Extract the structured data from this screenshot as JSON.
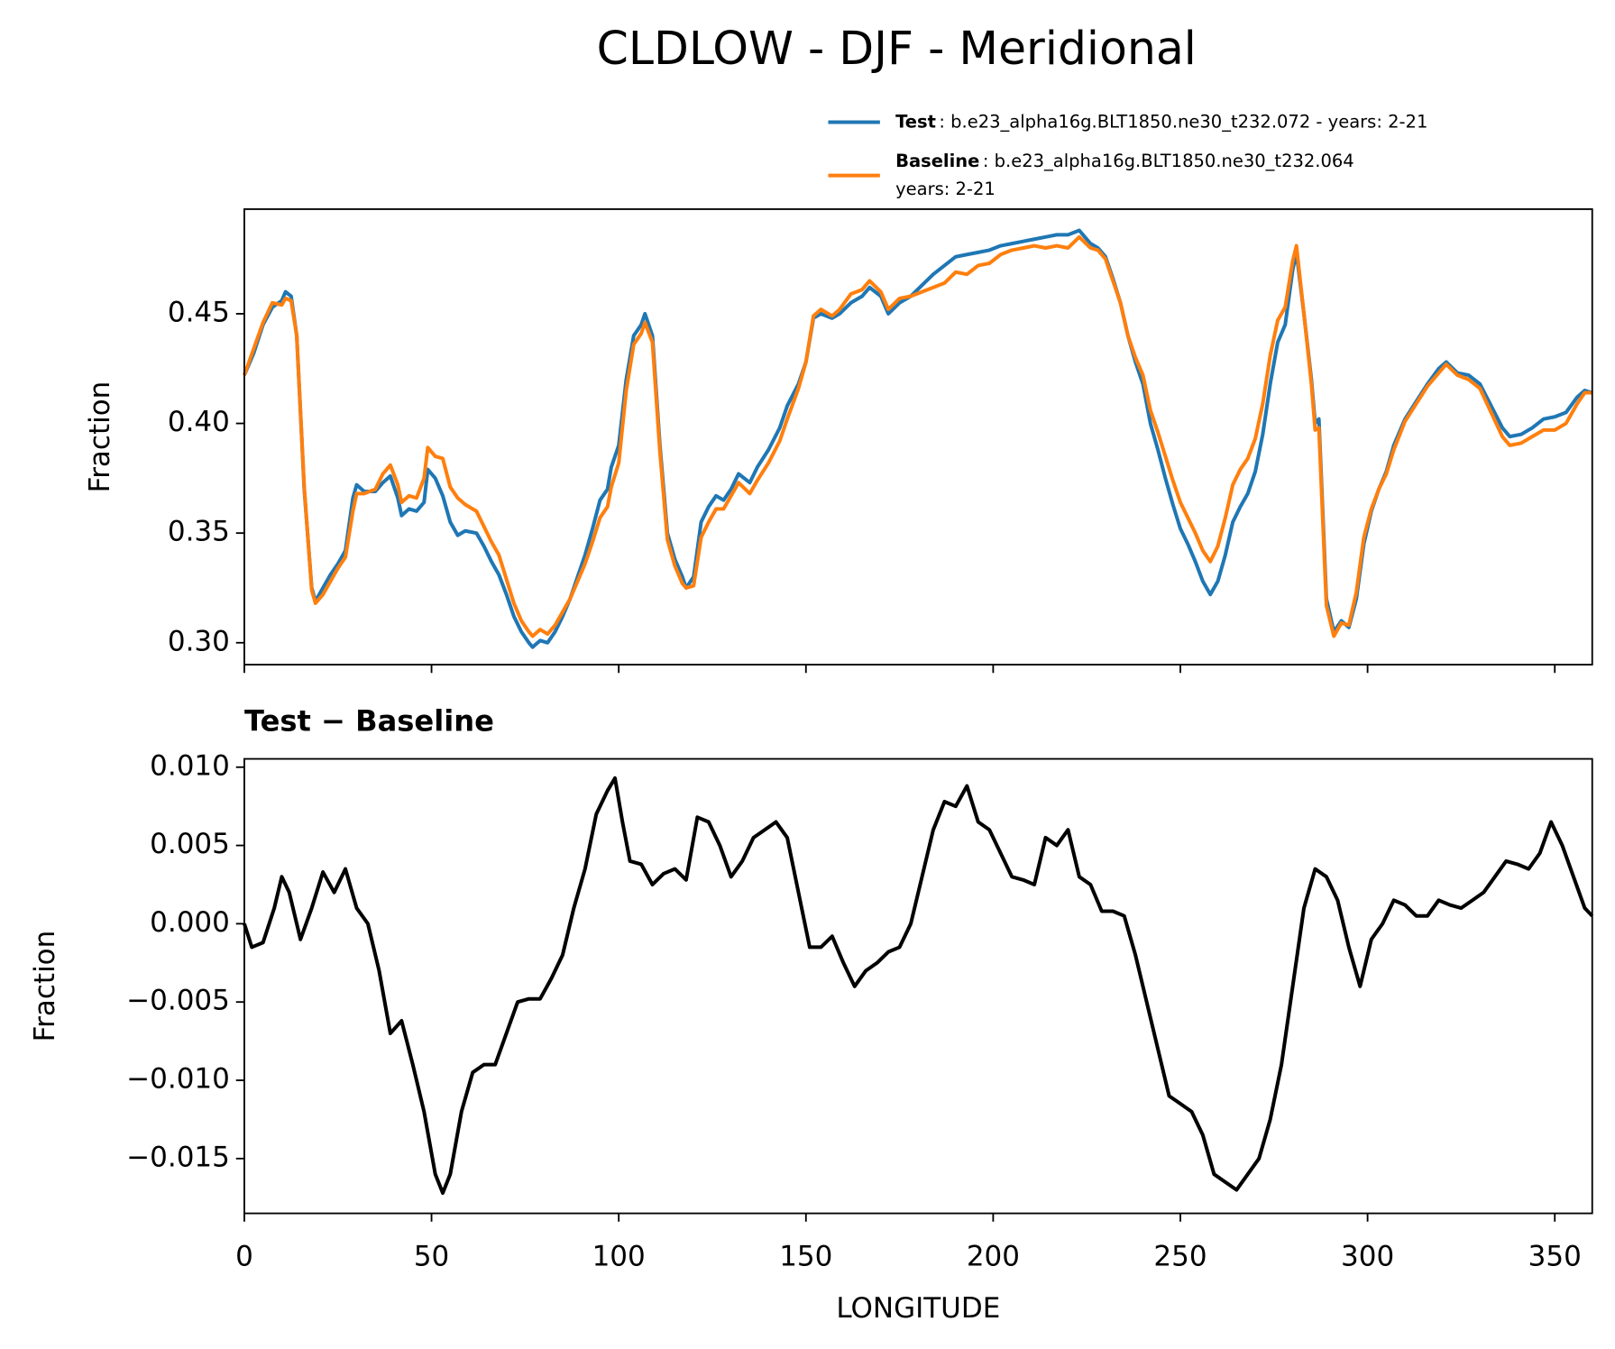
{
  "chart_data": [
    {
      "type": "line",
      "title": "CLDLOW - DJF - Meridional",
      "y_label": "Fraction",
      "x": [
        0,
        2.5,
        5,
        7.5,
        10,
        11,
        12.5,
        14,
        16,
        18,
        19,
        21,
        23,
        25,
        27,
        29,
        30,
        32,
        35,
        37,
        39,
        41,
        42,
        44,
        46,
        48,
        49,
        51,
        53,
        55,
        57,
        59,
        62,
        64,
        66,
        68,
        70,
        72,
        74,
        76,
        77,
        79,
        81,
        83,
        85,
        87,
        89,
        91,
        93,
        95,
        97,
        98,
        100,
        102,
        104,
        106,
        107,
        109,
        111,
        113,
        115,
        117,
        118,
        120,
        122,
        124,
        126,
        128,
        130,
        132,
        135,
        137,
        140,
        143,
        145,
        148,
        150,
        152,
        154,
        157,
        159,
        162,
        165,
        167,
        170,
        172,
        175,
        178,
        181,
        184,
        187,
        190,
        193,
        196,
        199,
        202,
        205,
        208,
        211,
        214,
        217,
        220,
        223,
        226,
        228,
        230,
        232,
        234,
        236,
        238,
        240,
        242,
        244,
        246,
        248,
        250,
        252,
        254,
        256,
        258,
        260,
        262,
        264,
        266,
        268,
        270,
        272,
        274,
        276,
        278,
        280,
        281,
        283,
        285,
        286,
        287,
        289,
        291,
        293,
        295,
        297,
        299,
        301,
        303,
        305,
        307,
        310,
        313,
        316,
        319,
        321,
        324,
        327,
        330,
        333,
        336,
        338,
        341,
        344,
        347,
        350,
        353,
        356,
        358,
        360
      ],
      "series": [
        {
          "name": "Test",
          "description": [
            ": b.e23_alpha16g.BLT1850.ne30_t232.072 - years: 2-21"
          ],
          "color": "#1f77b4",
          "values": [
            0.422,
            0.432,
            0.445,
            0.453,
            0.456,
            0.46,
            0.458,
            0.44,
            0.37,
            0.325,
            0.319,
            0.325,
            0.331,
            0.336,
            0.342,
            0.366,
            0.372,
            0.369,
            0.369,
            0.373,
            0.376,
            0.366,
            0.358,
            0.361,
            0.36,
            0.364,
            0.379,
            0.375,
            0.367,
            0.355,
            0.349,
            0.351,
            0.35,
            0.344,
            0.337,
            0.331,
            0.322,
            0.312,
            0.305,
            0.3,
            0.298,
            0.301,
            0.3,
            0.305,
            0.312,
            0.32,
            0.33,
            0.34,
            0.352,
            0.365,
            0.37,
            0.38,
            0.39,
            0.42,
            0.44,
            0.445,
            0.45,
            0.44,
            0.39,
            0.35,
            0.338,
            0.33,
            0.325,
            0.33,
            0.355,
            0.362,
            0.367,
            0.365,
            0.37,
            0.377,
            0.373,
            0.38,
            0.388,
            0.398,
            0.408,
            0.418,
            0.428,
            0.448,
            0.45,
            0.448,
            0.45,
            0.455,
            0.458,
            0.462,
            0.458,
            0.45,
            0.455,
            0.458,
            0.463,
            0.468,
            0.472,
            0.476,
            0.477,
            0.478,
            0.479,
            0.481,
            0.482,
            0.483,
            0.484,
            0.485,
            0.486,
            0.486,
            0.488,
            0.482,
            0.48,
            0.476,
            0.466,
            0.455,
            0.44,
            0.428,
            0.418,
            0.4,
            0.388,
            0.375,
            0.363,
            0.352,
            0.345,
            0.337,
            0.328,
            0.322,
            0.328,
            0.34,
            0.355,
            0.362,
            0.368,
            0.378,
            0.395,
            0.418,
            0.437,
            0.445,
            0.47,
            0.478,
            0.45,
            0.42,
            0.4,
            0.402,
            0.32,
            0.305,
            0.31,
            0.307,
            0.32,
            0.345,
            0.36,
            0.37,
            0.378,
            0.39,
            0.402,
            0.41,
            0.418,
            0.425,
            0.428,
            0.423,
            0.422,
            0.418,
            0.408,
            0.398,
            0.394,
            0.395,
            0.398,
            0.402,
            0.403,
            0.405,
            0.412,
            0.415,
            0.414
          ]
        },
        {
          "name": "Baseline",
          "description": [
            ": b.e23_alpha16g.BLT1850.ne30_t232.064",
            "years: 2-21"
          ],
          "color": "#ff7f0e",
          "values": [
            0.422,
            0.434,
            0.446,
            0.455,
            0.454,
            0.457,
            0.456,
            0.44,
            0.371,
            0.324,
            0.318,
            0.322,
            0.328,
            0.334,
            0.339,
            0.36,
            0.368,
            0.368,
            0.37,
            0.377,
            0.381,
            0.372,
            0.364,
            0.367,
            0.366,
            0.375,
            0.389,
            0.385,
            0.384,
            0.371,
            0.366,
            0.363,
            0.36,
            0.353,
            0.346,
            0.34,
            0.329,
            0.318,
            0.31,
            0.305,
            0.303,
            0.306,
            0.304,
            0.308,
            0.314,
            0.32,
            0.328,
            0.336,
            0.346,
            0.357,
            0.362,
            0.371,
            0.382,
            0.415,
            0.436,
            0.441,
            0.446,
            0.437,
            0.387,
            0.347,
            0.335,
            0.327,
            0.325,
            0.326,
            0.348,
            0.355,
            0.361,
            0.361,
            0.367,
            0.373,
            0.368,
            0.374,
            0.382,
            0.392,
            0.402,
            0.416,
            0.428,
            0.449,
            0.452,
            0.449,
            0.452,
            0.459,
            0.461,
            0.465,
            0.46,
            0.452,
            0.457,
            0.458,
            0.46,
            0.462,
            0.464,
            0.469,
            0.468,
            0.472,
            0.473,
            0.477,
            0.479,
            0.48,
            0.481,
            0.48,
            0.481,
            0.48,
            0.485,
            0.48,
            0.479,
            0.475,
            0.465,
            0.455,
            0.44,
            0.43,
            0.422,
            0.406,
            0.396,
            0.385,
            0.374,
            0.364,
            0.357,
            0.35,
            0.342,
            0.337,
            0.344,
            0.357,
            0.372,
            0.379,
            0.384,
            0.393,
            0.409,
            0.431,
            0.447,
            0.453,
            0.474,
            0.481,
            0.45,
            0.418,
            0.397,
            0.398,
            0.317,
            0.303,
            0.309,
            0.308,
            0.323,
            0.348,
            0.361,
            0.37,
            0.377,
            0.388,
            0.401,
            0.409,
            0.417,
            0.423,
            0.427,
            0.422,
            0.42,
            0.416,
            0.405,
            0.394,
            0.39,
            0.391,
            0.394,
            0.397,
            0.397,
            0.4,
            0.409,
            0.414,
            0.414
          ]
        }
      ],
      "xlim": [
        0,
        360
      ],
      "ylim": [
        0.29,
        0.4977
      ],
      "yticks": [
        {
          "value": 0.3,
          "label": "0.30"
        },
        0.35,
        {
          "value": 0.4,
          "label": "0.40"
        },
        0.45
      ]
    },
    {
      "type": "line",
      "title": "Test − Baseline",
      "y_label": "Fraction",
      "x_label": "LONGITUDE",
      "color": "#000000",
      "x": [
        0,
        2,
        5,
        8,
        10,
        12,
        15,
        18,
        21,
        24,
        27,
        30,
        33,
        36,
        39,
        42,
        45,
        48,
        51,
        53,
        55,
        58,
        61,
        64,
        67,
        70,
        73,
        76,
        79,
        82,
        85,
        88,
        91,
        94,
        97,
        99,
        101,
        103,
        106,
        109,
        112,
        115,
        118,
        121,
        124,
        127,
        130,
        133,
        136,
        139,
        142,
        145,
        148,
        151,
        154,
        157,
        160,
        163,
        166,
        169,
        172,
        175,
        178,
        181,
        184,
        187,
        190,
        193,
        196,
        199,
        202,
        205,
        208,
        211,
        214,
        217,
        220,
        223,
        226,
        229,
        232,
        235,
        238,
        241,
        244,
        247,
        250,
        253,
        256,
        259,
        262,
        265,
        268,
        271,
        274,
        277,
        280,
        283,
        286,
        289,
        292,
        295,
        298,
        301,
        304,
        307,
        310,
        313,
        316,
        319,
        322,
        325,
        328,
        331,
        334,
        337,
        340,
        343,
        346,
        349,
        352,
        355,
        358,
        360
      ],
      "values": [
        0,
        -0.0015,
        -0.0012,
        0.001,
        0.003,
        0.002,
        -0.001,
        0.001,
        0.0033,
        0.002,
        0.0035,
        0.001,
        0,
        -0.003,
        -0.007,
        -0.0062,
        -0.009,
        -0.012,
        -0.016,
        -0.0172,
        -0.016,
        -0.012,
        -0.0095,
        -0.009,
        -0.009,
        -0.007,
        -0.005,
        -0.0048,
        -0.0048,
        -0.0035,
        -0.002,
        0.001,
        0.0035,
        0.007,
        0.0085,
        0.0093,
        0.0065,
        0.004,
        0.0038,
        0.0025,
        0.0032,
        0.0035,
        0.0028,
        0.0068,
        0.0065,
        0.005,
        0.003,
        0.004,
        0.0055,
        0.006,
        0.0065,
        0.0055,
        0.002,
        -0.0015,
        -0.0015,
        -0.0008,
        -0.0025,
        -0.004,
        -0.003,
        -0.0025,
        -0.0018,
        -0.0015,
        0,
        0.003,
        0.006,
        0.0078,
        0.0075,
        0.0088,
        0.0065,
        0.006,
        0.0045,
        0.003,
        0.0028,
        0.0025,
        0.0055,
        0.005,
        0.006,
        0.003,
        0.0025,
        0.0008,
        0.0008,
        0.0005,
        -0.002,
        -0.005,
        -0.008,
        -0.011,
        -0.0115,
        -0.012,
        -0.0135,
        -0.016,
        -0.0165,
        -0.017,
        -0.016,
        -0.015,
        -0.0125,
        -0.009,
        -0.004,
        0.001,
        0.0035,
        0.003,
        0.0015,
        -0.0015,
        -0.004,
        -0.001,
        0,
        0.0015,
        0.0012,
        0.0005,
        0.0005,
        0.0015,
        0.0012,
        0.001,
        0.0015,
        0.002,
        0.003,
        0.004,
        0.0038,
        0.0035,
        0.0045,
        0.0065,
        0.005,
        0.003,
        0.001,
        0.0005
      ],
      "xlim": [
        0,
        360
      ],
      "ylim": [
        -0.0185,
        0.01053
      ],
      "xticks": [
        0,
        50,
        100,
        150,
        200,
        250,
        300,
        350
      ],
      "yticks": [
        {
          "value": 0.01,
          "label": "0.010"
        },
        {
          "value": 0.005,
          "label": "0.005"
        },
        {
          "value": 0,
          "label": "0.000"
        },
        {
          "value": -0.005,
          "label": "−0.005"
        },
        {
          "value": -0.01,
          "label": "−0.010"
        },
        {
          "value": -0.015,
          "label": "−0.015"
        }
      ]
    }
  ]
}
